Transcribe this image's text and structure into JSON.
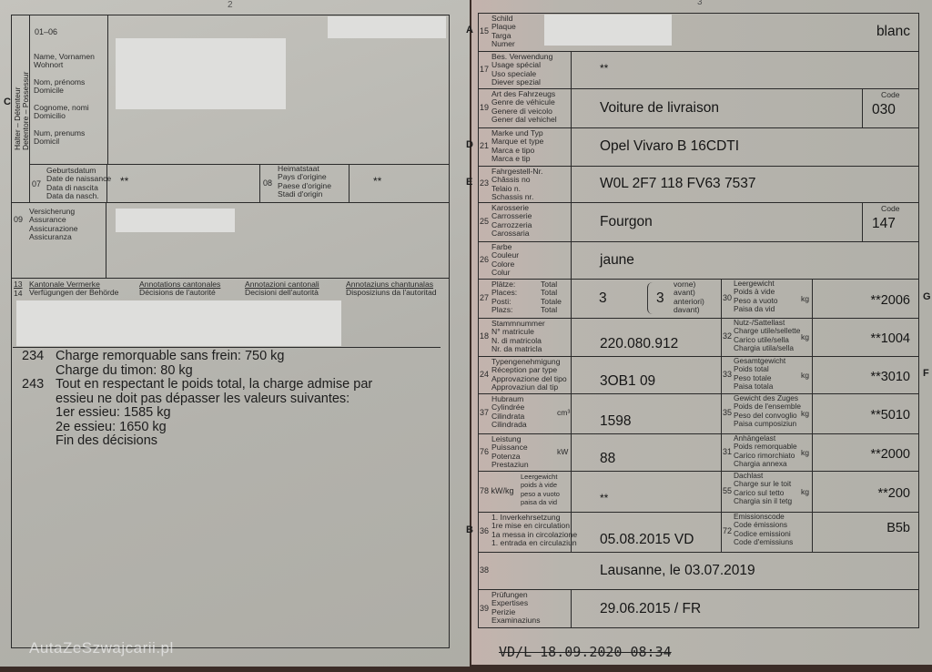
{
  "left_page": {
    "page_number": "2",
    "section_letter": "C",
    "holder_vertical_label": "Halter – Détenteur\nDetentore – Possessur",
    "field_01_06": {
      "num": "01–06",
      "label": "Name, Vornamen\nWohnort\n\nNom, prénoms\nDomicile\n\nCognome, nomi\nDomicilio\n\nNum, prenums\nDomicil"
    },
    "field_07": {
      "num": "07",
      "label": "Geburtsdatum\nDate de naissance\nData di nascita\nData da nasch.",
      "value": "**"
    },
    "field_08": {
      "num": "08",
      "label": "Heimatstaat\nPays d'origine\nPaese d'origine\nStadi d'origin",
      "value": "**"
    },
    "field_09": {
      "num": "09",
      "label": "Versicherung\nAssurance\nAssicurazione\nAssicuranza"
    },
    "annotations_header": {
      "num_13": "13",
      "num_14": "14",
      "de": {
        "title": "Kantonale Vermerke",
        "sub": "Verfügungen der Behörde"
      },
      "fr": {
        "title": "Annotations cantonales",
        "sub": "Décisions de l'autorité"
      },
      "it": {
        "title": "Annotazioni cantonali",
        "sub": "Decisioni dell'autorità"
      },
      "rm": {
        "title": "Annotaziuns chantunalas",
        "sub": "Disposiziuns da l'autoritad"
      }
    },
    "decisions": [
      {
        "code": "234",
        "text": "Charge remorquable sans frein: 750 kg\nCharge du timon: 80 kg"
      },
      {
        "code": "243",
        "text": "Tout en respectant le poids total, la charge admise par\nessieu ne doit pas dépasser les valeurs suivantes:\n1er essieu: 1585 kg\n2e essieu:  1650 kg\nFin des décisions"
      }
    ],
    "watermark": "AutaZeSzwajcarii.pl"
  },
  "right_page": {
    "page_number": "3",
    "rows": [
      {
        "marker": "A",
        "num": "15",
        "label": "Schild\nPlaque\nTarga\nNumer",
        "value": "blanc"
      },
      {
        "num": "17",
        "label": "Bes. Verwendung\nUsage spécial\nUso speciale\nDiever spezial",
        "value": "**"
      },
      {
        "num": "19",
        "label": "Art des Fahrzeugs\nGenre de véhicule\nGenere di veicolo\nGener dal vehichel",
        "value": "Voiture de livraison",
        "code_label": "Code",
        "code": "030"
      },
      {
        "marker": "D",
        "num": "21",
        "label": "Marke und Typ\nMarque et type\nMarca e tipo\nMarca e tip",
        "value": "Opel Vivaro B 16CDTI"
      },
      {
        "marker": "E",
        "num": "23",
        "label": "Fahrgestell-Nr.\nChâssis no\nTelaio n.\nSchassis nr.",
        "value": "W0L 2F7 118 FV63 7537"
      },
      {
        "num": "25",
        "label": "Karosserie\nCarrosserie\nCarrozzeria\nCarossaria",
        "value": "Fourgon",
        "code_label": "Code",
        "code": "147"
      },
      {
        "num": "26",
        "label": "Farbe\nCouleur\nColore\nColur",
        "value": "jaune"
      },
      {
        "num": "27",
        "label": "Plätze:\nPlaces:\nPosti:\nPlazs:",
        "label2": "Total\nTotal\nTotale\nTotal",
        "value": "3",
        "front_value": "3",
        "front_label": "vorne)\navant)\nanteriori)\ndavant)",
        "right": {
          "marker": "G",
          "num": "30",
          "label": "Leergewicht\nPoids à vide\nPeso a vuoto\nPaisa da vid",
          "unit": "kg",
          "value": "**2006"
        }
      },
      {
        "num": "18",
        "label": "Stammnummer\nN° matricule\nN. di matricola\nNr. da matricla",
        "value": "220.080.912",
        "right": {
          "num": "32",
          "label": "Nutz-/Sattellast\nCharge utile/sellette\nCarico utile/sella\nChargia utila/sella",
          "unit": "kg",
          "value": "**1004"
        }
      },
      {
        "num": "24",
        "label": "Typengenehmigung\nRéception par type\nApprovazione del tipo\nApprovaziun dal tip",
        "value": "3OB1 09",
        "right": {
          "marker": "F",
          "num": "33",
          "label": "Gesamtgewicht\nPoids total\nPeso totale\nPaisa totala",
          "unit": "kg",
          "value": "**3010"
        }
      },
      {
        "num": "37",
        "label": "Hubraum\nCylindrée\nCilindrata\nCilindrada",
        "unit": "cm³",
        "value": "1598",
        "right": {
          "num": "35",
          "label": "Gewicht des Zuges\nPoids de l'ensemble\nPeso del convoglio\nPaisa cumposiziun",
          "unit": "kg",
          "value": "**5010"
        }
      },
      {
        "num": "76",
        "label": "Leistung\nPuissance\nPotenza\nPrestaziun",
        "unit": "kW",
        "value": "88",
        "right": {
          "num": "31",
          "label": "Anhängelast\nPoids remorquable\nCarico rimorchiato\nChargia annexa",
          "unit": "kg",
          "value": "**2000"
        }
      },
      {
        "num": "78 kW/kg",
        "label": "Leergewicht\npoids à vide\npeso a vuoto\npaisa da vid",
        "value": "**",
        "right": {
          "num": "55",
          "label": "Dachlast\nCharge sur le toit\nCarico sul tetto\nChargia sin il tetg",
          "unit": "kg",
          "value": "**200"
        }
      },
      {
        "marker": "B",
        "num": "36",
        "label": "1. Inverkehrsetzung\n1re mise en circulation\n1a messa in circolazione\n1. entrada en circulaziun",
        "value": "05.08.2015 VD",
        "right": {
          "num": "72",
          "label": "Emissionscode\nCode émissions\nCodice emissioni\nCode d'emissiuns",
          "value": "B5b"
        }
      },
      {
        "num": "38",
        "label": "",
        "value": "Lausanne, le 03.07.2019"
      },
      {
        "num": "39",
        "label": "Prüfungen\nExpertises\nPerizie\nExaminaziuns",
        "value": "29.06.2015 / FR"
      }
    ],
    "stamp": "VD/L 18.09.2020 08:34"
  }
}
